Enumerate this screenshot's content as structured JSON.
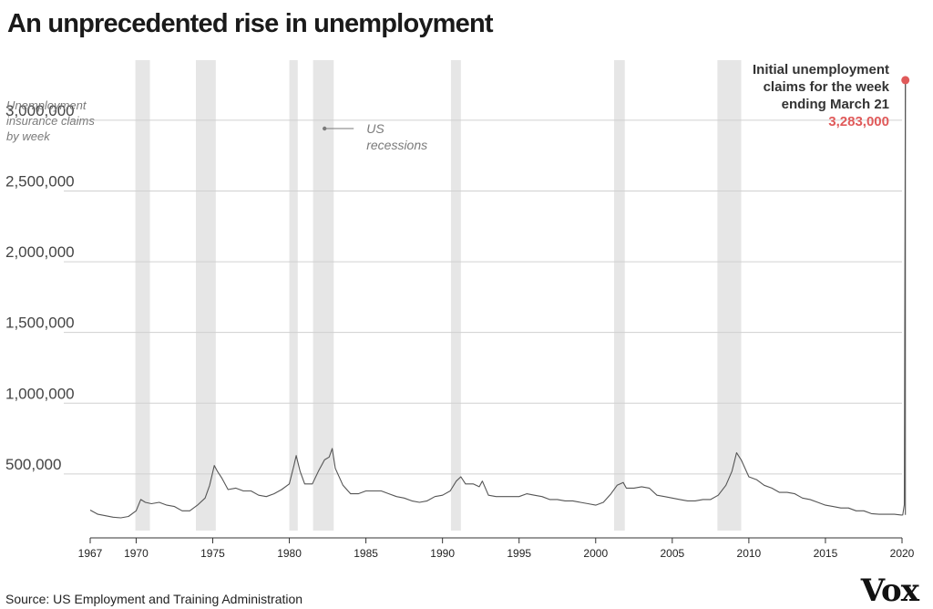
{
  "title": "An unprecedented rise in unemployment",
  "source": "Source: US Employment and Training Administration",
  "logo": "Vox",
  "chart_data": {
    "type": "line",
    "ylabel_lines": [
      "Unemployment",
      "insurance claims",
      "by week"
    ],
    "ylim": [
      100000,
      3450000
    ],
    "xlim": [
      1967,
      2020
    ],
    "y_ticks": [
      {
        "value": 500000,
        "label": "500,000"
      },
      {
        "value": 1000000,
        "label": "1,000,000"
      },
      {
        "value": 1500000,
        "label": "1,500,000"
      },
      {
        "value": 2000000,
        "label": "2,000,000"
      },
      {
        "value": 2500000,
        "label": "2,500,000"
      },
      {
        "value": 3000000,
        "label": "3,000,000"
      }
    ],
    "x_ticks": [
      {
        "value": 1967,
        "label": "1967"
      },
      {
        "value": 1970,
        "label": "1970"
      },
      {
        "value": 1975,
        "label": "1975"
      },
      {
        "value": 1980,
        "label": "1980"
      },
      {
        "value": 1985,
        "label": "1985"
      },
      {
        "value": 1990,
        "label": "1990"
      },
      {
        "value": 1995,
        "label": "1995"
      },
      {
        "value": 2000,
        "label": "2000"
      },
      {
        "value": 2005,
        "label": "2005"
      },
      {
        "value": 2010,
        "label": "2010"
      },
      {
        "value": 2015,
        "label": "2015"
      },
      {
        "value": 2020,
        "label": "2020"
      }
    ],
    "recessions_label_lines": [
      "US",
      "recessions"
    ],
    "recessions": [
      [
        1969.95,
        1970.9
      ],
      [
        1973.9,
        1975.2
      ],
      [
        1980.0,
        1980.55
      ],
      [
        1981.55,
        1982.9
      ],
      [
        1990.55,
        1991.2
      ],
      [
        2001.2,
        2001.9
      ],
      [
        2007.95,
        2009.5
      ]
    ],
    "series": [
      {
        "values": [
          [
            1967.0,
            245000
          ],
          [
            1967.5,
            215000
          ],
          [
            1968.0,
            205000
          ],
          [
            1968.5,
            195000
          ],
          [
            1969.0,
            190000
          ],
          [
            1969.5,
            200000
          ],
          [
            1970.0,
            240000
          ],
          [
            1970.3,
            320000
          ],
          [
            1970.6,
            300000
          ],
          [
            1971.0,
            290000
          ],
          [
            1971.5,
            300000
          ],
          [
            1972.0,
            280000
          ],
          [
            1972.5,
            270000
          ],
          [
            1973.0,
            240000
          ],
          [
            1973.5,
            240000
          ],
          [
            1974.0,
            280000
          ],
          [
            1974.5,
            330000
          ],
          [
            1974.8,
            420000
          ],
          [
            1975.1,
            560000
          ],
          [
            1975.3,
            520000
          ],
          [
            1975.6,
            470000
          ],
          [
            1976.0,
            390000
          ],
          [
            1976.5,
            400000
          ],
          [
            1977.0,
            380000
          ],
          [
            1977.5,
            380000
          ],
          [
            1978.0,
            350000
          ],
          [
            1978.5,
            340000
          ],
          [
            1979.0,
            360000
          ],
          [
            1979.5,
            390000
          ],
          [
            1980.0,
            430000
          ],
          [
            1980.3,
            560000
          ],
          [
            1980.45,
            630000
          ],
          [
            1980.7,
            520000
          ],
          [
            1981.0,
            430000
          ],
          [
            1981.5,
            430000
          ],
          [
            1981.9,
            520000
          ],
          [
            1982.3,
            600000
          ],
          [
            1982.6,
            620000
          ],
          [
            1982.8,
            680000
          ],
          [
            1983.0,
            540000
          ],
          [
            1983.5,
            420000
          ],
          [
            1984.0,
            360000
          ],
          [
            1984.5,
            360000
          ],
          [
            1985.0,
            380000
          ],
          [
            1985.5,
            380000
          ],
          [
            1986.0,
            380000
          ],
          [
            1986.5,
            360000
          ],
          [
            1987.0,
            340000
          ],
          [
            1987.5,
            330000
          ],
          [
            1988.0,
            310000
          ],
          [
            1988.5,
            300000
          ],
          [
            1989.0,
            310000
          ],
          [
            1989.5,
            340000
          ],
          [
            1990.0,
            350000
          ],
          [
            1990.5,
            380000
          ],
          [
            1990.9,
            450000
          ],
          [
            1991.2,
            480000
          ],
          [
            1991.5,
            430000
          ],
          [
            1992.0,
            430000
          ],
          [
            1992.4,
            410000
          ],
          [
            1992.6,
            450000
          ],
          [
            1993.0,
            350000
          ],
          [
            1993.5,
            340000
          ],
          [
            1994.0,
            340000
          ],
          [
            1994.5,
            340000
          ],
          [
            1995.0,
            340000
          ],
          [
            1995.5,
            360000
          ],
          [
            1996.0,
            350000
          ],
          [
            1996.5,
            340000
          ],
          [
            1997.0,
            320000
          ],
          [
            1997.5,
            320000
          ],
          [
            1998.0,
            310000
          ],
          [
            1998.5,
            310000
          ],
          [
            1999.0,
            300000
          ],
          [
            1999.5,
            290000
          ],
          [
            2000.0,
            280000
          ],
          [
            2000.5,
            300000
          ],
          [
            2001.0,
            360000
          ],
          [
            2001.4,
            420000
          ],
          [
            2001.8,
            440000
          ],
          [
            2002.0,
            400000
          ],
          [
            2002.5,
            400000
          ],
          [
            2003.0,
            410000
          ],
          [
            2003.5,
            400000
          ],
          [
            2004.0,
            350000
          ],
          [
            2004.5,
            340000
          ],
          [
            2005.0,
            330000
          ],
          [
            2005.5,
            320000
          ],
          [
            2006.0,
            310000
          ],
          [
            2006.5,
            310000
          ],
          [
            2007.0,
            320000
          ],
          [
            2007.5,
            320000
          ],
          [
            2008.0,
            350000
          ],
          [
            2008.5,
            420000
          ],
          [
            2008.9,
            520000
          ],
          [
            2009.2,
            650000
          ],
          [
            2009.5,
            600000
          ],
          [
            2010.0,
            480000
          ],
          [
            2010.5,
            460000
          ],
          [
            2011.0,
            420000
          ],
          [
            2011.5,
            400000
          ],
          [
            2012.0,
            370000
          ],
          [
            2012.5,
            370000
          ],
          [
            2013.0,
            360000
          ],
          [
            2013.5,
            330000
          ],
          [
            2014.0,
            320000
          ],
          [
            2014.5,
            300000
          ],
          [
            2015.0,
            280000
          ],
          [
            2015.5,
            270000
          ],
          [
            2016.0,
            260000
          ],
          [
            2016.5,
            260000
          ],
          [
            2017.0,
            240000
          ],
          [
            2017.5,
            240000
          ],
          [
            2018.0,
            220000
          ],
          [
            2018.5,
            215000
          ],
          [
            2019.0,
            215000
          ],
          [
            2019.5,
            215000
          ],
          [
            2019.95,
            210000
          ],
          [
            2020.05,
            211000
          ],
          [
            2020.15,
            282000
          ],
          [
            2020.22,
            3283000
          ]
        ]
      }
    ],
    "annotation": {
      "lines": [
        "Initial unemployment",
        "claims for the week",
        "ending March 21"
      ],
      "value_label": "3,283,000",
      "x": 2020.22,
      "y": 3283000
    },
    "colors": {
      "line": "#555555",
      "grid": "#d0d0d0",
      "recession": "#e6e6e6",
      "highlight": "#e05a5a",
      "axis_text": "#444444",
      "label_text": "#7a7a7a"
    }
  }
}
